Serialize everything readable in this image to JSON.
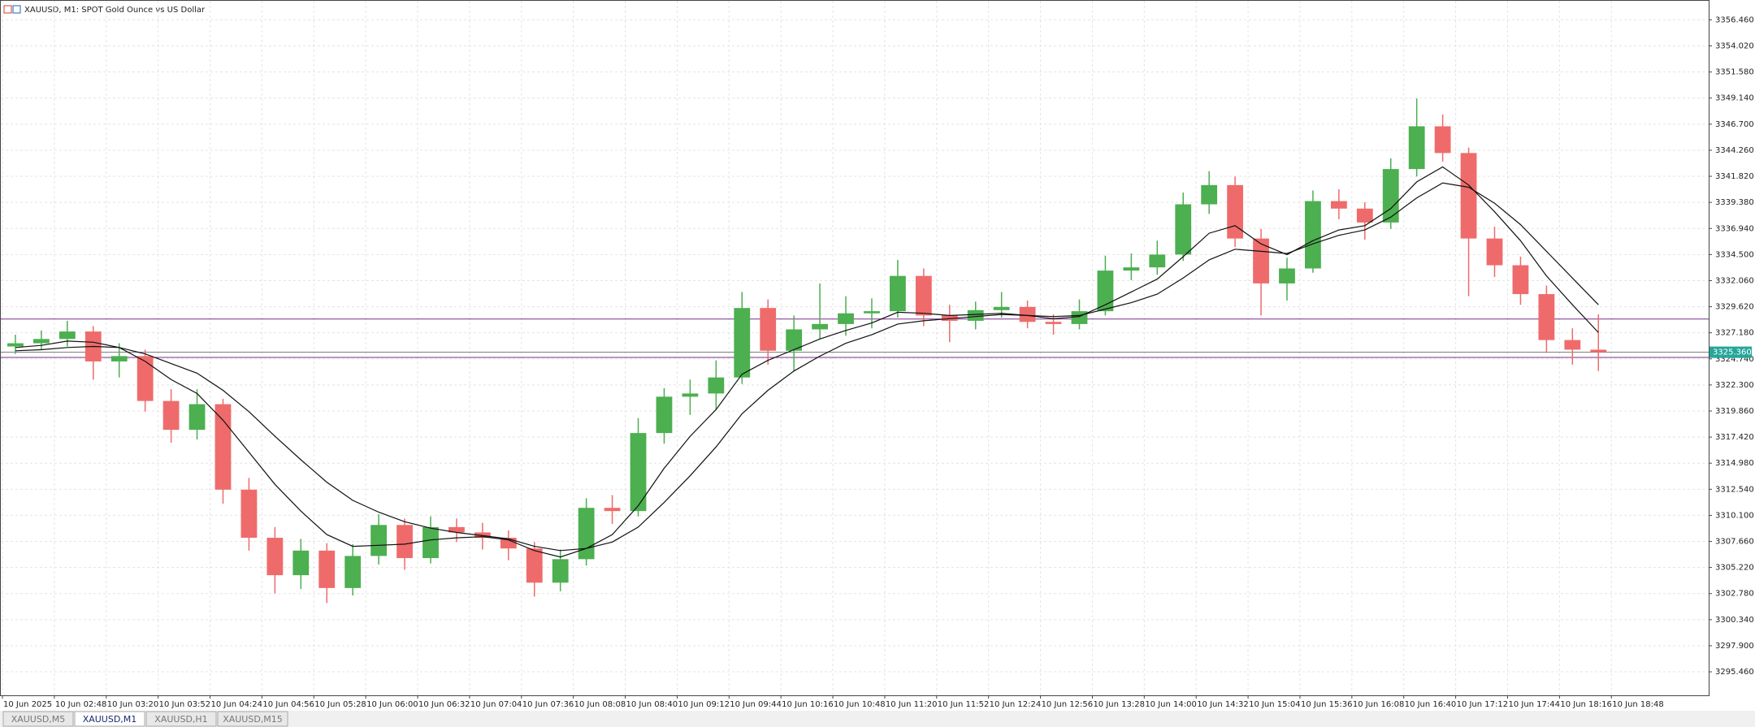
{
  "chart_data": {
    "type": "candlestick",
    "title": "XAUUSD, M1:  SPOT Gold Ounce vs US Dollar",
    "tabs": [
      "XAUUSD,M5",
      "XAUUSD,M1",
      "XAUUSD,H1",
      "XAUUSD,M15"
    ],
    "active_tab": 1,
    "x": [
      "10 Jun 02:16",
      "10 Jun 02:32",
      "10 Jun 02:48",
      "10 Jun 03:04",
      "10 Jun 03:20",
      "10 Jun 03:36",
      "10 Jun 03:52",
      "10 Jun 04:08",
      "10 Jun 04:24",
      "10 Jun 04:40",
      "10 Jun 04:56",
      "10 Jun 05:12",
      "10 Jun 05:28",
      "10 Jun 05:44",
      "10 Jun 06:00",
      "10 Jun 06:16",
      "10 Jun 06:32",
      "10 Jun 06:48",
      "10 Jun 07:04",
      "10 Jun 07:20",
      "10 Jun 07:36",
      "10 Jun 07:52",
      "10 Jun 08:08",
      "10 Jun 08:24",
      "10 Jun 08:40",
      "10 Jun 08:56",
      "10 Jun 09:12",
      "10 Jun 09:28",
      "10 Jun 09:44",
      "10 Jun 10:00",
      "10 Jun 10:16",
      "10 Jun 10:32",
      "10 Jun 10:48",
      "10 Jun 11:04",
      "10 Jun 11:20",
      "10 Jun 11:36",
      "10 Jun 11:52",
      "10 Jun 12:08",
      "10 Jun 12:24",
      "10 Jun 12:40",
      "10 Jun 12:56",
      "10 Jun 13:12",
      "10 Jun 13:28",
      "10 Jun 13:44",
      "10 Jun 14:00",
      "10 Jun 14:16",
      "10 Jun 14:32",
      "10 Jun 14:48",
      "10 Jun 15:04",
      "10 Jun 15:20",
      "10 Jun 15:36",
      "10 Jun 15:52",
      "10 Jun 16:08",
      "10 Jun 16:24",
      "10 Jun 16:40",
      "10 Jun 16:56",
      "10 Jun 17:12",
      "10 Jun 17:28",
      "10 Jun 17:44",
      "10 Jun 18:00",
      "10 Jun 18:16",
      "10 Jun 18:32"
    ],
    "open": [
      3325.9,
      3326.2,
      3326.6,
      3327.3,
      3324.5,
      3325.0,
      3320.8,
      3318.1,
      3320.5,
      3312.5,
      3308.0,
      3304.5,
      3306.8,
      3303.3,
      3306.3,
      3309.2,
      3306.1,
      3309.0,
      3308.5,
      3308.0,
      3307.0,
      3303.8,
      3306.0,
      3310.8,
      3310.5,
      3317.8,
      3321.2,
      3321.5,
      3323.0,
      3329.5,
      3325.5,
      3327.5,
      3328.0,
      3329.0,
      3329.2,
      3332.5,
      3328.8,
      3328.3,
      3329.3,
      3329.6,
      3328.2,
      3328.0,
      3329.2,
      3333.0,
      3333.3,
      3334.5,
      3339.2,
      3341.0,
      3336.0,
      3331.8,
      3333.2,
      3339.5,
      3338.8,
      3337.5,
      3342.5,
      3346.5,
      3344.0,
      3336.0,
      3333.5,
      3330.8,
      3326.5,
      3325.6
    ],
    "high": [
      3327.0,
      3327.4,
      3328.3,
      3327.8,
      3326.2,
      3325.6,
      3321.9,
      3321.9,
      3321.0,
      3313.6,
      3309.0,
      3307.9,
      3307.5,
      3307.4,
      3310.2,
      3309.8,
      3310.0,
      3309.8,
      3309.4,
      3308.7,
      3307.6,
      3306.9,
      3311.7,
      3312.0,
      3319.2,
      3322.0,
      3322.8,
      3324.6,
      3331.0,
      3330.3,
      3328.8,
      3331.8,
      3330.6,
      3330.4,
      3334.0,
      3333.2,
      3329.8,
      3330.1,
      3331.0,
      3330.2,
      3328.9,
      3330.3,
      3334.4,
      3334.6,
      3335.8,
      3340.3,
      3342.3,
      3341.8,
      3336.9,
      3334.2,
      3340.5,
      3340.6,
      3339.4,
      3343.5,
      3349.1,
      3347.6,
      3344.5,
      3337.1,
      3334.3,
      3331.6,
      3327.6,
      3328.9
    ],
    "low": [
      3325.2,
      3325.6,
      3325.9,
      3322.8,
      3323.0,
      3319.8,
      3316.9,
      3317.2,
      3311.2,
      3306.8,
      3302.8,
      3303.2,
      3301.9,
      3302.6,
      3305.5,
      3305.0,
      3305.6,
      3307.6,
      3306.9,
      3305.9,
      3302.5,
      3303.0,
      3305.4,
      3309.3,
      3310.0,
      3316.8,
      3319.5,
      3320.0,
      3322.4,
      3324.2,
      3323.6,
      3326.6,
      3326.9,
      3327.6,
      3328.6,
      3327.8,
      3326.3,
      3327.5,
      3328.6,
      3327.6,
      3327.0,
      3327.5,
      3328.8,
      3332.1,
      3332.6,
      3333.9,
      3338.3,
      3335.2,
      3328.8,
      3330.2,
      3332.8,
      3337.8,
      3335.9,
      3336.9,
      3341.8,
      3343.2,
      3330.6,
      3332.4,
      3329.8,
      3325.3,
      3324.2,
      3323.6
    ],
    "close": [
      3326.2,
      3326.6,
      3327.3,
      3324.5,
      3325.0,
      3320.8,
      3318.1,
      3320.5,
      3312.5,
      3308.0,
      3304.5,
      3306.8,
      3303.3,
      3306.3,
      3309.2,
      3306.1,
      3309.0,
      3308.5,
      3308.0,
      3307.0,
      3303.8,
      3306.0,
      3310.8,
      3310.5,
      3317.8,
      3321.2,
      3321.5,
      3323.0,
      3329.5,
      3325.5,
      3327.5,
      3328.0,
      3329.0,
      3329.2,
      3332.5,
      3328.8,
      3328.3,
      3329.3,
      3329.6,
      3328.2,
      3328.0,
      3329.2,
      3333.0,
      3333.3,
      3334.5,
      3339.2,
      3341.0,
      3336.0,
      3331.8,
      3333.2,
      3339.5,
      3338.8,
      3337.5,
      3342.5,
      3346.5,
      3344.0,
      3336.0,
      3333.5,
      3330.8,
      3326.5,
      3325.6,
      3325.36
    ],
    "up_color": "#4caf50",
    "down_color": "#ef6b6b",
    "lines": [
      {
        "color": "#111111",
        "values": [
          3325.8,
          3326.0,
          3326.4,
          3326.3,
          3325.8,
          3324.5,
          3322.8,
          3321.5,
          3319.0,
          3316.0,
          3313.0,
          3310.5,
          3308.3,
          3307.2,
          3307.3,
          3307.4,
          3307.8,
          3308.0,
          3308.1,
          3307.8,
          3306.8,
          3306.2,
          3307.0,
          3308.3,
          3311.0,
          3314.5,
          3317.5,
          3320.0,
          3323.3,
          3324.6,
          3325.6,
          3326.6,
          3327.4,
          3328.1,
          3329.1,
          3329.0,
          3328.8,
          3328.9,
          3329.0,
          3328.8,
          3328.5,
          3328.7,
          3329.8,
          3331.0,
          3332.2,
          3334.3,
          3336.5,
          3337.2,
          3335.5,
          3334.5,
          3335.8,
          3336.8,
          3337.2,
          3338.8,
          3341.3,
          3342.7,
          3341.0,
          3338.5,
          3335.8,
          3332.5,
          3329.8,
          3327.2
        ]
      },
      {
        "color": "#111111",
        "values": [
          3325.5,
          3325.6,
          3325.8,
          3325.9,
          3325.8,
          3325.2,
          3324.3,
          3323.4,
          3321.8,
          3319.8,
          3317.5,
          3315.3,
          3313.2,
          3311.5,
          3310.4,
          3309.5,
          3308.9,
          3308.5,
          3308.2,
          3307.9,
          3307.2,
          3306.8,
          3307.0,
          3307.6,
          3309.0,
          3311.3,
          3313.8,
          3316.5,
          3319.6,
          3321.8,
          3323.6,
          3325.0,
          3326.2,
          3327.0,
          3328.0,
          3328.3,
          3328.5,
          3328.7,
          3328.9,
          3328.8,
          3328.7,
          3328.8,
          3329.4,
          3330.0,
          3330.8,
          3332.3,
          3334.0,
          3335.0,
          3334.8,
          3334.6,
          3335.5,
          3336.3,
          3336.8,
          3338.0,
          3339.8,
          3341.2,
          3340.8,
          3339.3,
          3337.3,
          3334.8,
          3332.3,
          3329.8
        ]
      }
    ],
    "levels": [
      {
        "value": 3328.47,
        "color": "#7b2d8e"
      },
      {
        "value": 3324.88,
        "color": "#7b2d8e"
      }
    ],
    "last_price": {
      "value": 3325.36,
      "label": "3325.360",
      "color": "#26a69a"
    },
    "xlim": [
      "10 Jun 02:15",
      "10 Jun 19:48"
    ],
    "xticks": [
      {
        "value": "10 Jun 02:16",
        "label": "10 Jun 2025"
      },
      "10 Jun 02:48",
      "10 Jun 03:20",
      "10 Jun 03:52",
      "10 Jun 04:24",
      "10 Jun 04:56",
      "10 Jun 05:28",
      "10 Jun 06:00",
      "10 Jun 06:32",
      "10 Jun 07:04",
      "10 Jun 07:36",
      "10 Jun 08:08",
      "10 Jun 08:40",
      "10 Jun 09:12",
      "10 Jun 09:44",
      "10 Jun 10:16",
      "10 Jun 10:48",
      "10 Jun 11:20",
      "10 Jun 11:52",
      "10 Jun 12:24",
      "10 Jun 12:56",
      "10 Jun 13:28",
      "10 Jun 14:00",
      "10 Jun 14:32",
      "10 Jun 15:04",
      "10 Jun 15:36",
      "10 Jun 16:08",
      "10 Jun 16:40",
      "10 Jun 17:12",
      "10 Jun 17:44",
      "10 Jun 18:16",
      "10 Jun 18:48"
    ],
    "ylim": [
      3293.26,
      3358.24
    ],
    "yticks": [
      {
        "value": 3295.46,
        "label": "3295.460"
      },
      {
        "value": 3297.9,
        "label": "3297.900"
      },
      {
        "value": 3300.34,
        "label": "3300.340"
      },
      {
        "value": 3302.78,
        "label": "3302.780"
      },
      {
        "value": 3305.22,
        "label": "3305.220"
      },
      {
        "value": 3307.66,
        "label": "3307.660"
      },
      {
        "value": 3310.1,
        "label": "3310.100"
      },
      {
        "value": 3312.54,
        "label": "3312.540"
      },
      {
        "value": 3314.98,
        "label": "3314.980"
      },
      {
        "value": 3317.42,
        "label": "3317.420"
      },
      {
        "value": 3319.86,
        "label": "3319.860"
      },
      {
        "value": 3322.3,
        "label": "3322.300"
      },
      {
        "value": 3324.74,
        "label": "3324.740"
      },
      {
        "value": 3327.18,
        "label": "3327.180"
      },
      {
        "value": 3329.62,
        "label": "3329.620"
      },
      {
        "value": 3332.06,
        "label": "3332.060"
      },
      {
        "value": 3334.5,
        "label": "3334.500"
      },
      {
        "value": 3336.94,
        "label": "3336.940"
      },
      {
        "value": 3339.38,
        "label": "3339.380"
      },
      {
        "value": 3341.82,
        "label": "3341.820"
      },
      {
        "value": 3344.26,
        "label": "3344.260"
      },
      {
        "value": 3346.7,
        "label": "3346.700"
      },
      {
        "value": 3349.14,
        "label": "3349.140"
      },
      {
        "value": 3351.58,
        "label": "3351.580"
      },
      {
        "value": 3354.02,
        "label": "3354.020"
      },
      {
        "value": 3356.46,
        "label": "3356.460"
      }
    ],
    "grid": true
  }
}
